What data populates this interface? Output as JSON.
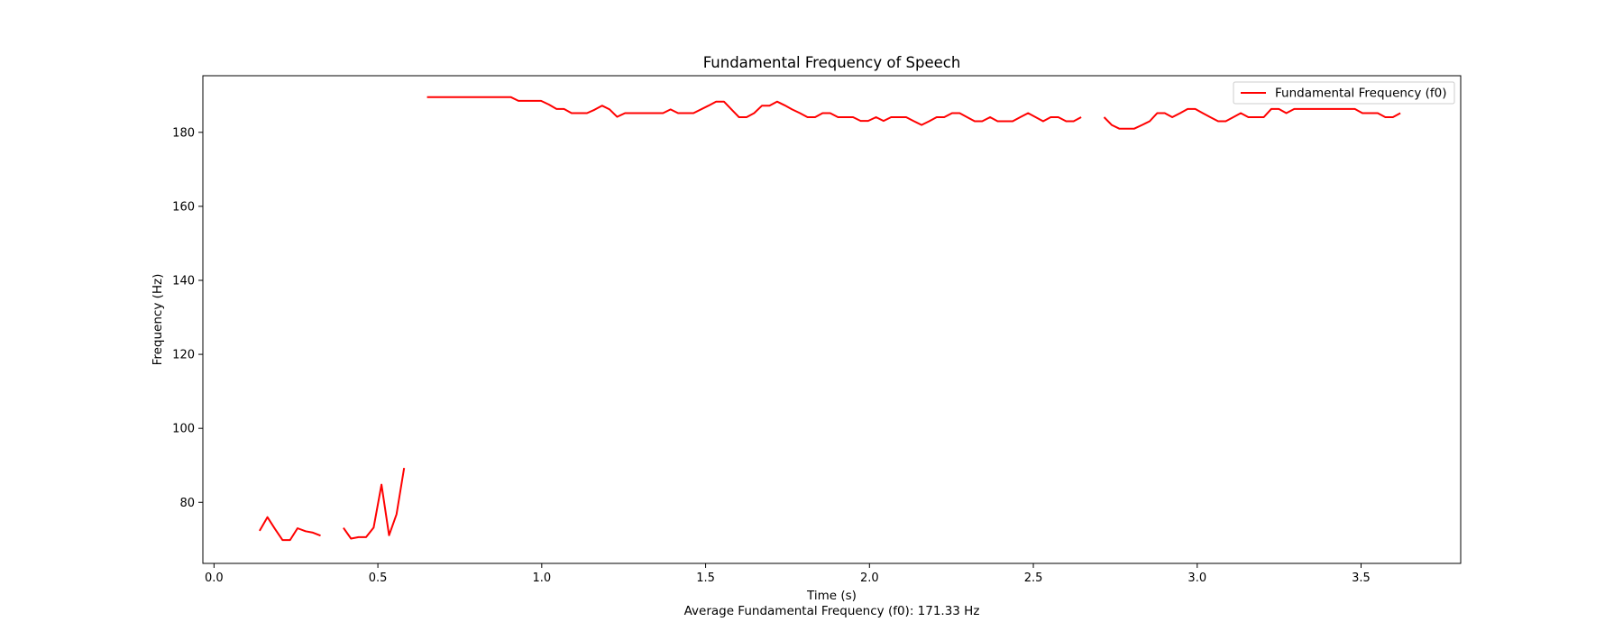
{
  "chart_data": {
    "type": "line",
    "title": "Fundamental Frequency of Speech",
    "xlabel": "Time (s)",
    "ylabel": "Frequency (Hz)",
    "caption": "Average Fundamental Frequency (f0): 171.33 Hz",
    "xlim": [
      -0.034,
      3.804
    ],
    "ylim": [
      63.5,
      195.3
    ],
    "x_ticks": [
      0.0,
      0.5,
      1.0,
      1.5,
      2.0,
      2.5,
      3.0,
      3.5
    ],
    "x_tick_labels": [
      "0.0",
      "0.5",
      "1.0",
      "1.5",
      "2.0",
      "2.5",
      "3.0",
      "3.5"
    ],
    "y_ticks": [
      80,
      100,
      120,
      140,
      160,
      180
    ],
    "y_tick_labels": [
      "80",
      "100",
      "120",
      "140",
      "160",
      "180"
    ],
    "grid": false,
    "legend": {
      "position": "top-right"
    },
    "series": [
      {
        "name": "Fundamental Frequency (f0)",
        "color": "#ff0000",
        "segments": [
          [
            [
              0.139,
              72.3
            ],
            [
              0.163,
              76.0
            ],
            [
              0.186,
              72.8
            ],
            [
              0.209,
              69.8
            ],
            [
              0.232,
              69.8
            ],
            [
              0.255,
              73.0
            ],
            [
              0.279,
              72.2
            ],
            [
              0.302,
              71.8
            ],
            [
              0.325,
              71.0
            ]
          ],
          [
            [
              0.395,
              73.1
            ],
            [
              0.418,
              70.2
            ],
            [
              0.441,
              70.6
            ],
            [
              0.464,
              70.6
            ],
            [
              0.487,
              73.2
            ],
            [
              0.511,
              84.8
            ],
            [
              0.534,
              71.1
            ],
            [
              0.557,
              76.8
            ],
            [
              0.58,
              89.3
            ]
          ],
          [
            [
              0.65,
              189.5
            ],
            [
              0.673,
              189.5
            ],
            [
              0.906,
              189.5
            ],
            [
              0.929,
              188.5
            ],
            [
              0.998,
              188.5
            ],
            [
              1.022,
              187.5
            ],
            [
              1.045,
              186.3
            ],
            [
              1.068,
              186.3
            ],
            [
              1.091,
              185.2
            ],
            [
              1.138,
              185.2
            ],
            [
              1.161,
              186.1
            ],
            [
              1.184,
              187.2
            ],
            [
              1.207,
              186.2
            ],
            [
              1.23,
              184.2
            ],
            [
              1.254,
              185.2
            ],
            [
              1.37,
              185.2
            ],
            [
              1.393,
              186.2
            ],
            [
              1.416,
              185.2
            ],
            [
              1.463,
              185.2
            ],
            [
              1.509,
              187.2
            ],
            [
              1.532,
              188.3
            ],
            [
              1.556,
              188.3
            ],
            [
              1.579,
              186.2
            ],
            [
              1.602,
              184.1
            ],
            [
              1.625,
              184.1
            ],
            [
              1.648,
              185.2
            ],
            [
              1.672,
              187.2
            ],
            [
              1.695,
              187.2
            ],
            [
              1.718,
              188.3
            ],
            [
              1.741,
              187.3
            ],
            [
              1.764,
              186.2
            ],
            [
              1.788,
              185.2
            ],
            [
              1.811,
              184.1
            ],
            [
              1.834,
              184.1
            ],
            [
              1.857,
              185.2
            ],
            [
              1.88,
              185.2
            ],
            [
              1.904,
              184.1
            ],
            [
              1.95,
              184.1
            ],
            [
              1.973,
              183.1
            ],
            [
              1.996,
              183.1
            ],
            [
              2.02,
              184.1
            ],
            [
              2.043,
              183.1
            ],
            [
              2.066,
              184.1
            ],
            [
              2.112,
              184.1
            ],
            [
              2.136,
              183.0
            ],
            [
              2.159,
              182.0
            ],
            [
              2.182,
              183.0
            ],
            [
              2.205,
              184.1
            ],
            [
              2.228,
              184.1
            ],
            [
              2.252,
              185.2
            ],
            [
              2.275,
              185.2
            ],
            [
              2.298,
              184.1
            ],
            [
              2.321,
              183.0
            ],
            [
              2.344,
              183.0
            ],
            [
              2.368,
              184.1
            ],
            [
              2.391,
              183.0
            ],
            [
              2.437,
              183.0
            ],
            [
              2.46,
              184.1
            ],
            [
              2.484,
              185.2
            ],
            [
              2.507,
              184.1
            ],
            [
              2.53,
              183.0
            ],
            [
              2.553,
              184.1
            ],
            [
              2.576,
              184.1
            ],
            [
              2.6,
              183.0
            ],
            [
              2.623,
              183.0
            ],
            [
              2.646,
              184.1
            ]
          ],
          [
            [
              2.716,
              184.1
            ],
            [
              2.739,
              182.0
            ],
            [
              2.762,
              181.0
            ],
            [
              2.808,
              181.0
            ],
            [
              2.832,
              182.0
            ],
            [
              2.855,
              183.0
            ],
            [
              2.878,
              185.2
            ],
            [
              2.901,
              185.2
            ],
            [
              2.924,
              184.1
            ],
            [
              2.948,
              185.2
            ],
            [
              2.971,
              186.3
            ],
            [
              2.994,
              186.3
            ],
            [
              3.017,
              185.2
            ],
            [
              3.04,
              184.1
            ],
            [
              3.064,
              183.0
            ],
            [
              3.087,
              183.0
            ],
            [
              3.11,
              184.1
            ],
            [
              3.133,
              185.2
            ],
            [
              3.156,
              184.1
            ],
            [
              3.203,
              184.1
            ],
            [
              3.226,
              186.3
            ],
            [
              3.249,
              186.3
            ],
            [
              3.272,
              185.2
            ],
            [
              3.296,
              186.3
            ],
            [
              3.481,
              186.3
            ],
            [
              3.504,
              185.2
            ],
            [
              3.551,
              185.2
            ],
            [
              3.574,
              184.1
            ],
            [
              3.597,
              184.1
            ],
            [
              3.62,
              185.2
            ]
          ]
        ]
      }
    ]
  }
}
